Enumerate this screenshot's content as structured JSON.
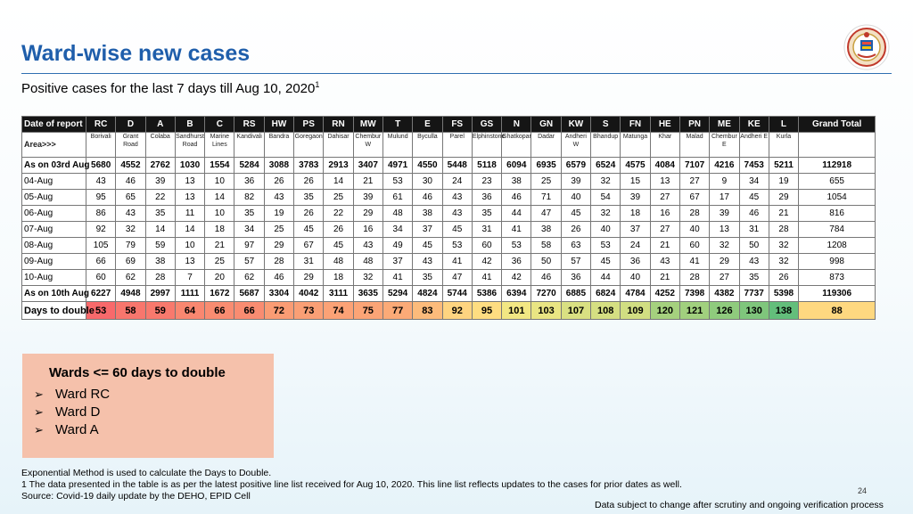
{
  "title": "Ward-wise new cases",
  "subtitle": "Positive cases for the last 7 days till Aug 10, 2020",
  "subtitle_sup": "1",
  "table": {
    "header_label": "Date of report",
    "area_label": "Area>>>",
    "grand_total_label": "Grand Total",
    "wards": [
      "RC",
      "D",
      "A",
      "B",
      "C",
      "RS",
      "HW",
      "PS",
      "RN",
      "MW",
      "T",
      "E",
      "FS",
      "GS",
      "N",
      "GN",
      "KW",
      "S",
      "FN",
      "HE",
      "PN",
      "ME",
      "KE",
      "L"
    ],
    "areas": [
      "Borivali",
      "Grant Road",
      "Colaba",
      "Sandhurst Road",
      "Marine Lines",
      "Kandivali",
      "Bandra",
      "Goregaon",
      "Dahisar",
      "Chembur W",
      "Mulund",
      "Byculla",
      "Parel",
      "Elphinstone",
      "Ghatkopar",
      "Dadar",
      "Andheri W",
      "Bhandup",
      "Matunga",
      "Khar",
      "Malad",
      "Chembur E",
      "Andheri E",
      "Kurla"
    ],
    "rows": [
      {
        "label": "As on 03rd Aug",
        "bold": true,
        "values": [
          "5680",
          "4552",
          "2762",
          "1030",
          "1554",
          "5284",
          "3088",
          "3783",
          "2913",
          "3407",
          "4971",
          "4550",
          "5448",
          "5118",
          "6094",
          "6935",
          "6579",
          "6524",
          "4575",
          "4084",
          "7107",
          "4216",
          "7453",
          "5211"
        ],
        "total": "112918"
      },
      {
        "label": "04-Aug",
        "values": [
          "43",
          "46",
          "39",
          "13",
          "10",
          "36",
          "26",
          "26",
          "14",
          "21",
          "53",
          "30",
          "24",
          "23",
          "38",
          "25",
          "39",
          "32",
          "15",
          "13",
          "27",
          "9",
          "34",
          "19"
        ],
        "total": "655"
      },
      {
        "label": "05-Aug",
        "values": [
          "95",
          "65",
          "22",
          "13",
          "14",
          "82",
          "43",
          "35",
          "25",
          "39",
          "61",
          "46",
          "43",
          "36",
          "46",
          "71",
          "40",
          "54",
          "39",
          "27",
          "67",
          "17",
          "45",
          "29"
        ],
        "total": "1054"
      },
      {
        "label": "06-Aug",
        "values": [
          "86",
          "43",
          "35",
          "11",
          "10",
          "35",
          "19",
          "26",
          "22",
          "29",
          "48",
          "38",
          "43",
          "35",
          "44",
          "47",
          "45",
          "32",
          "18",
          "16",
          "28",
          "39",
          "46",
          "21"
        ],
        "total": "816"
      },
      {
        "label": "07-Aug",
        "values": [
          "92",
          "32",
          "14",
          "14",
          "18",
          "34",
          "25",
          "45",
          "26",
          "16",
          "34",
          "37",
          "45",
          "31",
          "41",
          "38",
          "26",
          "40",
          "37",
          "27",
          "40",
          "13",
          "31",
          "28"
        ],
        "total": "784"
      },
      {
        "label": "08-Aug",
        "values": [
          "105",
          "79",
          "59",
          "10",
          "21",
          "97",
          "29",
          "67",
          "45",
          "43",
          "49",
          "45",
          "53",
          "60",
          "53",
          "58",
          "63",
          "53",
          "24",
          "21",
          "60",
          "32",
          "50",
          "32"
        ],
        "total": "1208"
      },
      {
        "label": "09-Aug",
        "values": [
          "66",
          "69",
          "38",
          "13",
          "25",
          "57",
          "28",
          "31",
          "48",
          "48",
          "37",
          "43",
          "41",
          "42",
          "36",
          "50",
          "57",
          "45",
          "36",
          "43",
          "41",
          "29",
          "43",
          "32"
        ],
        "total": "998"
      },
      {
        "label": "10-Aug",
        "values": [
          "60",
          "62",
          "28",
          "7",
          "20",
          "62",
          "46",
          "29",
          "18",
          "32",
          "41",
          "35",
          "47",
          "41",
          "42",
          "46",
          "36",
          "44",
          "40",
          "21",
          "28",
          "27",
          "35",
          "26"
        ],
        "total": "873"
      },
      {
        "label": "As on 10th Aug",
        "bold": true,
        "values": [
          "6227",
          "4948",
          "2997",
          "1111",
          "1672",
          "5687",
          "3304",
          "4042",
          "3111",
          "3635",
          "5294",
          "4824",
          "5744",
          "5386",
          "6394",
          "7270",
          "6885",
          "6824",
          "4784",
          "4252",
          "7398",
          "4382",
          "7737",
          "5398"
        ],
        "total": "119306"
      }
    ],
    "days_row": {
      "label": "Days to double",
      "values": [
        "53",
        "58",
        "59",
        "64",
        "66",
        "66",
        "72",
        "73",
        "74",
        "75",
        "77",
        "83",
        "92",
        "95",
        "101",
        "103",
        "107",
        "108",
        "109",
        "120",
        "121",
        "126",
        "130",
        "138"
      ],
      "colors": [
        "#f8696b",
        "#f8766d",
        "#f8796d",
        "#f98770",
        "#f98c71",
        "#f98c71",
        "#fa9c74",
        "#fa9f75",
        "#fba276",
        "#fba476",
        "#fbaa77",
        "#fcbb7b",
        "#fed480",
        "#fedd81",
        "#f2e783",
        "#e9e583",
        "#d9e082",
        "#d5df82",
        "#d1de82",
        "#a5d17e",
        "#a1d07e",
        "#8fcb7d",
        "#7fc67c",
        "#63be7b"
      ],
      "total": "88",
      "total_color": "#fed880"
    }
  },
  "info_box": {
    "title": "Wards <= 60 days to double",
    "items": [
      "Ward RC",
      "Ward D",
      "Ward A"
    ],
    "bg_color": "#f5c1ab"
  },
  "footnotes": [
    "Exponential Method is used to calculate the Days to Double.",
    "1 The data presented in the table is as per the latest positive line list received for Aug 10, 2020. This line list reflects updates to the cases for prior dates as well.",
    "Source: Covid-19 daily update by the DEHO, EPID Cell"
  ],
  "page_number": "24",
  "disclaimer": "Data subject to change after scrutiny and ongoing verification process",
  "logo_icon": "municipal-seal-icon"
}
